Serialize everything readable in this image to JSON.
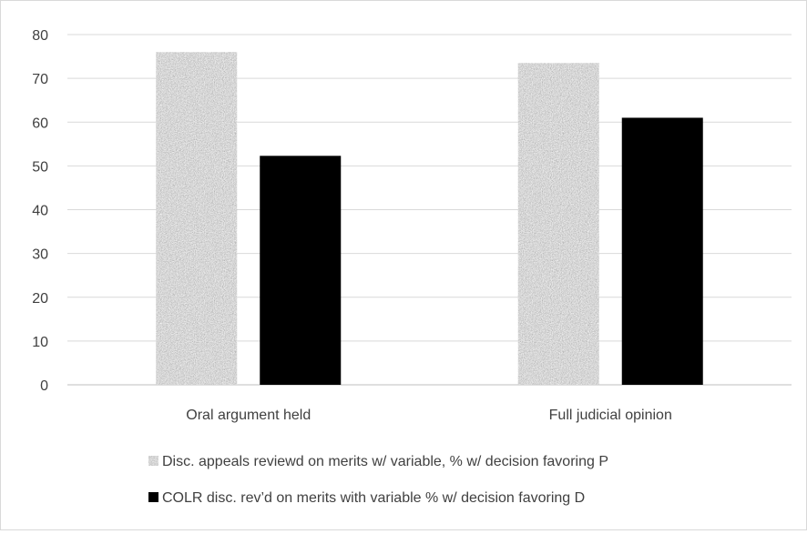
{
  "chart_data": {
    "type": "bar",
    "title": "",
    "xlabel": "",
    "ylabel": "",
    "ylim": [
      0,
      80
    ],
    "yticks": [
      0,
      10,
      20,
      30,
      40,
      50,
      60,
      70,
      80
    ],
    "categories": [
      "Oral argument held",
      "Full judicial opinion"
    ],
    "series": [
      {
        "name": "Disc. appeals reviewd on merits w/ variable, % w/ decision favoring P",
        "values": [
          76,
          73.5
        ],
        "color": "#9a9a9a",
        "pattern": "speckled-gray"
      },
      {
        "name": "COLR disc. rev’d on merits  with variable % w/ decision favoring D",
        "values": [
          52.3,
          61
        ],
        "color": "#000000",
        "pattern": "solid"
      }
    ],
    "grid": true,
    "legend_position": "bottom"
  }
}
